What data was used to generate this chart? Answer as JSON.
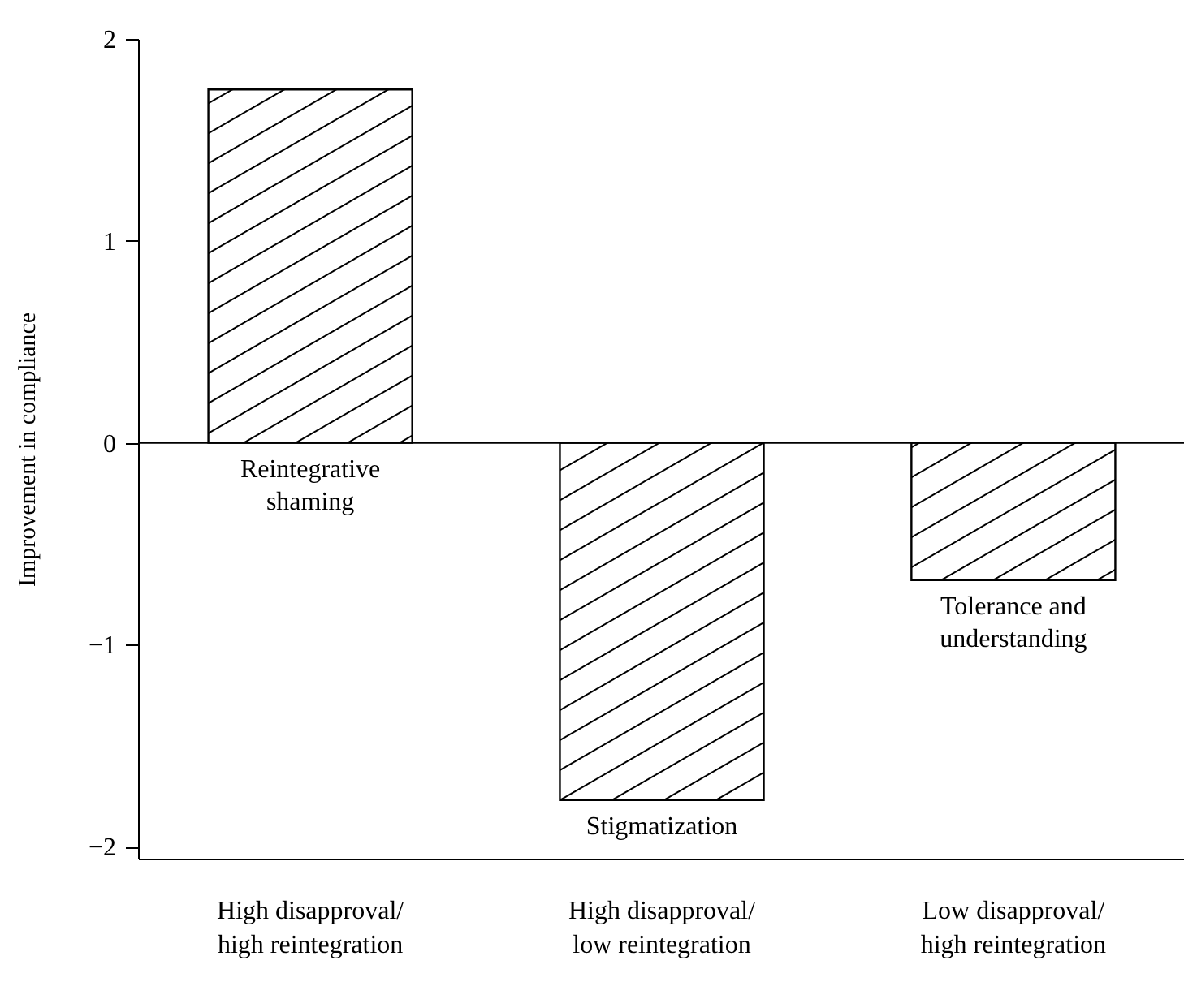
{
  "chart_data": {
    "type": "bar",
    "ylabel": "Improvement in compliance",
    "categories": [
      "High disapproval/\nhigh reintegration",
      "High disapproval/\nlow reintegration",
      "Low disapproval/\nhigh reintegration"
    ],
    "values": [
      1.75,
      -1.77,
      -0.68
    ],
    "color": "#000000",
    "ylim": [
      -2.06,
      2
    ],
    "yticks": [
      -2,
      -1,
      0,
      1,
      2
    ],
    "grid": false,
    "ref_lines": [
      {
        "axis": "y",
        "value": 0,
        "color": "#000000"
      }
    ],
    "annotations": [
      {
        "text": "Reintegrative\nshaming",
        "x": "High disapproval/\nhigh reintegration",
        "y": 0
      },
      {
        "text": "Stigmatization",
        "x": "High disapproval/\nlow reintegration",
        "y": -1.77
      },
      {
        "text": "Tolerance and\nunderstanding",
        "x": "Low disapproval/\nhigh reintegration",
        "y": -0.68
      }
    ]
  }
}
